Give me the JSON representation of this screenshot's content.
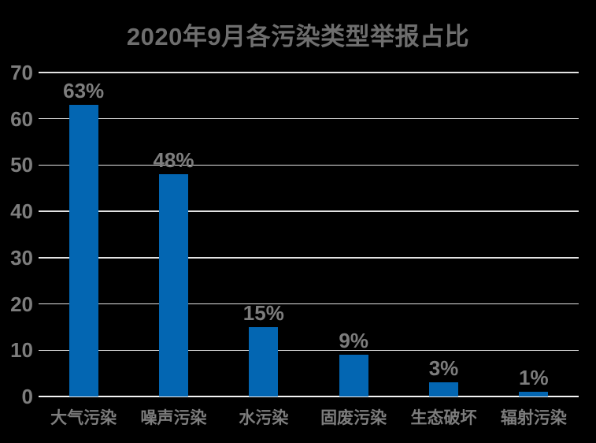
{
  "chart_data": {
    "type": "bar",
    "title": "2020年9月各污染类型举报占比",
    "categories": [
      "大气污染",
      "噪声污染",
      "水污染",
      "固废污染",
      "生态破坏",
      "辐射污染"
    ],
    "values": [
      63,
      48,
      15,
      9,
      3,
      1
    ],
    "value_labels": [
      "63%",
      "48%",
      "15%",
      "9%",
      "3%",
      "1%"
    ],
    "y_ticks": [
      0,
      10,
      20,
      30,
      40,
      50,
      60,
      70
    ],
    "ylim": [
      0,
      70
    ],
    "xlabel": "",
    "ylabel": "",
    "grid": true,
    "legend": "none",
    "colors": {
      "background": "#000000",
      "bar": "#0366b2",
      "grid_line": "#e3e3e3",
      "axis_line": "#f4f4f4",
      "title_text": "#6e6e6e",
      "label_text": "#7d7d7d"
    }
  }
}
